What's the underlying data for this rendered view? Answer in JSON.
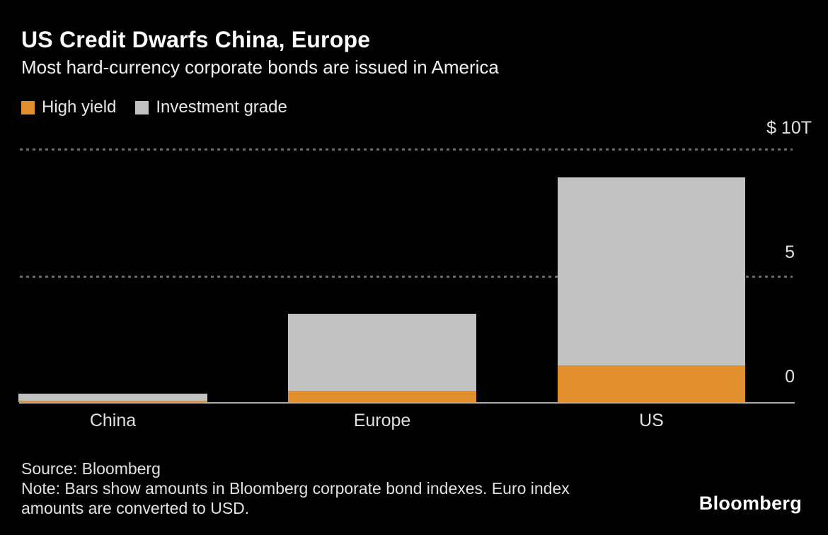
{
  "chart_data": {
    "type": "bar",
    "stacked": true,
    "title": "US Credit Dwarfs China, Europe",
    "subtitle": "Most hard-currency corporate bonds are issued in America",
    "unit": "USD trillions",
    "categories": [
      "China",
      "Europe",
      "US"
    ],
    "series": [
      {
        "name": "High yield",
        "color": "#E1902C",
        "values": [
          0.06,
          0.45,
          1.45
        ]
      },
      {
        "name": "Investment grade",
        "color": "#C2C2C2",
        "values": [
          0.28,
          3.05,
          7.4
        ]
      }
    ],
    "totals": [
      0.34,
      3.5,
      8.85
    ],
    "ylim": [
      0,
      10
    ],
    "yticks": [
      {
        "value": 0,
        "label": "0"
      },
      {
        "value": 5,
        "label": "5"
      },
      {
        "value": 10,
        "label": "$ 10T"
      }
    ],
    "grid": "horizontal dotted lines at 5 and 10",
    "legend_position": "top-left",
    "axis_labels_position": "right"
  },
  "footer": {
    "source": "Source: Bloomberg",
    "note_lines": [
      "Note: Bars show amounts in Bloomberg corporate bond indexes. Euro index",
      "amounts are converted to USD."
    ],
    "logo": "Bloomberg"
  },
  "colors": {
    "background": "#000000",
    "high_yield": "#E1902C",
    "investment_grade": "#C2C2C2",
    "gridline": "#6A6A6A",
    "baseline": "#ACACAC",
    "text": "#FFFFFF"
  }
}
